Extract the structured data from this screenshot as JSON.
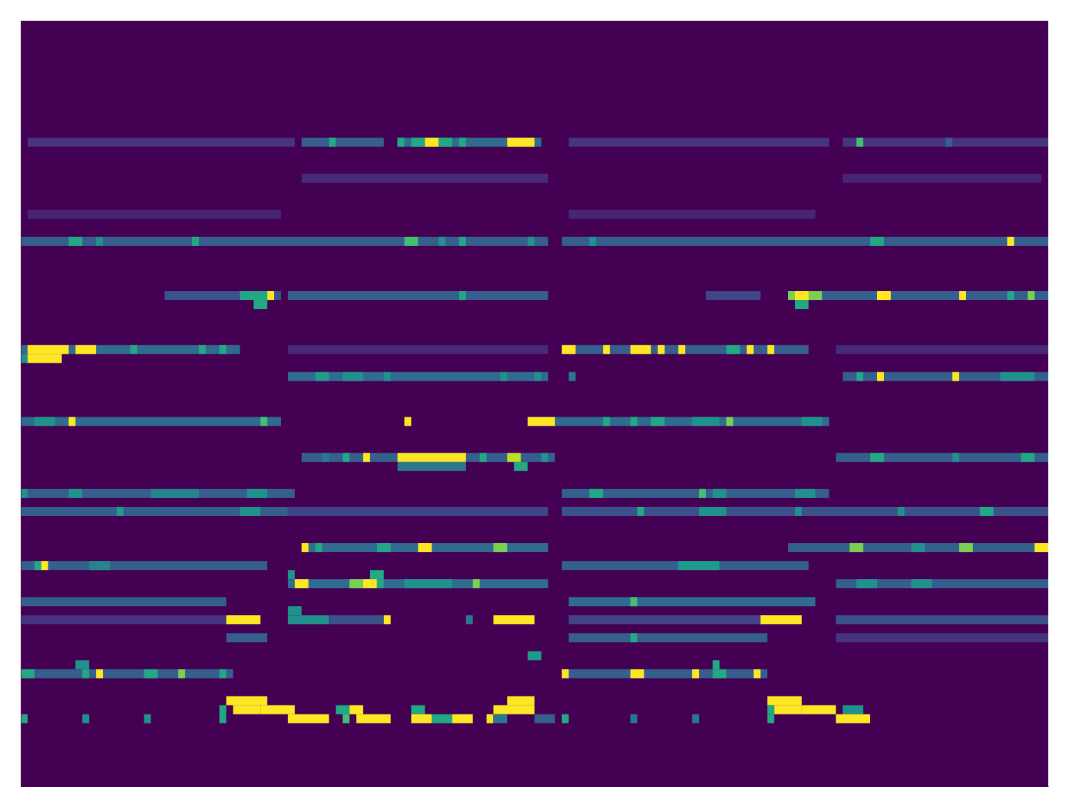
{
  "chart_data": {
    "type": "heatmap",
    "xlim": [
      0,
      150
    ],
    "ylim": [
      0,
      85
    ],
    "tick_labels": false,
    "color_range": [
      0,
      1
    ],
    "cells": [
      [
        1,
        39,
        13,
        0.15
      ],
      [
        41,
        52,
        13,
        0.3
      ],
      [
        45,
        45,
        13,
        0.6
      ],
      [
        55,
        75,
        13,
        0.35
      ],
      [
        55,
        55,
        13,
        0.6
      ],
      [
        57,
        58,
        13,
        0.6
      ],
      [
        59,
        60,
        13,
        1
      ],
      [
        61,
        62,
        13,
        0.6
      ],
      [
        64,
        64,
        13,
        0.6
      ],
      [
        71,
        74,
        13,
        1
      ],
      [
        80,
        117,
        13,
        0.15
      ],
      [
        120,
        149,
        13,
        0.15
      ],
      [
        122,
        122,
        13,
        0.7
      ],
      [
        135,
        135,
        13,
        0.3
      ],
      [
        41,
        76,
        17,
        0.12
      ],
      [
        120,
        148,
        17,
        0.1
      ],
      [
        1,
        37,
        21,
        0.1
      ],
      [
        80,
        115,
        21,
        0.1
      ],
      [
        0,
        76,
        24,
        0.3
      ],
      [
        7,
        8,
        24,
        0.6
      ],
      [
        11,
        11,
        24,
        0.5
      ],
      [
        25,
        25,
        24,
        0.6
      ],
      [
        56,
        57,
        24,
        0.7
      ],
      [
        61,
        61,
        24,
        0.5
      ],
      [
        64,
        64,
        24,
        0.6
      ],
      [
        74,
        74,
        24,
        0.5
      ],
      [
        79,
        149,
        24,
        0.3
      ],
      [
        83,
        83,
        24,
        0.5
      ],
      [
        124,
        125,
        24,
        0.6
      ],
      [
        144,
        144,
        24,
        1
      ],
      [
        21,
        37,
        30,
        0.25
      ],
      [
        32,
        35,
        30,
        0.6
      ],
      [
        36,
        36,
        30,
        1
      ],
      [
        39,
        76,
        30,
        0.3
      ],
      [
        64,
        64,
        30,
        0.6
      ],
      [
        100,
        107,
        30,
        0.2
      ],
      [
        112,
        116,
        30,
        0.8
      ],
      [
        113,
        114,
        30,
        1
      ],
      [
        117,
        149,
        30,
        0.3
      ],
      [
        125,
        126,
        30,
        1
      ],
      [
        137,
        137,
        30,
        1
      ],
      [
        144,
        144,
        30,
        0.6
      ],
      [
        147,
        147,
        30,
        0.8
      ],
      [
        34,
        35,
        31,
        0.6
      ],
      [
        113,
        114,
        31,
        0.6
      ],
      [
        0,
        31,
        36,
        0.35
      ],
      [
        1,
        6,
        36,
        1
      ],
      [
        8,
        10,
        36,
        1
      ],
      [
        16,
        16,
        36,
        0.6
      ],
      [
        26,
        26,
        36,
        0.6
      ],
      [
        29,
        29,
        36,
        0.6
      ],
      [
        39,
        76,
        36,
        0.12
      ],
      [
        79,
        114,
        36,
        0.3
      ],
      [
        79,
        80,
        36,
        1
      ],
      [
        85,
        85,
        36,
        1
      ],
      [
        89,
        91,
        36,
        1
      ],
      [
        93,
        93,
        36,
        1
      ],
      [
        96,
        96,
        36,
        1
      ],
      [
        103,
        104,
        36,
        0.6
      ],
      [
        106,
        106,
        36,
        1
      ],
      [
        109,
        109,
        36,
        1
      ],
      [
        119,
        149,
        36,
        0.12
      ],
      [
        1,
        5,
        37,
        1
      ],
      [
        0,
        0,
        37,
        0.5
      ],
      [
        39,
        76,
        39,
        0.35
      ],
      [
        43,
        44,
        39,
        0.55
      ],
      [
        47,
        49,
        39,
        0.5
      ],
      [
        53,
        53,
        39,
        0.5
      ],
      [
        70,
        70,
        39,
        0.5
      ],
      [
        75,
        75,
        39,
        0.5
      ],
      [
        80,
        80,
        39,
        0.4
      ],
      [
        120,
        149,
        39,
        0.3
      ],
      [
        122,
        122,
        39,
        0.6
      ],
      [
        125,
        125,
        39,
        1
      ],
      [
        136,
        136,
        39,
        1
      ],
      [
        143,
        147,
        39,
        0.5
      ],
      [
        0,
        37,
        44,
        0.35
      ],
      [
        2,
        4,
        44,
        0.5
      ],
      [
        7,
        7,
        44,
        1
      ],
      [
        35,
        35,
        44,
        0.7
      ],
      [
        56,
        56,
        44,
        1
      ],
      [
        74,
        117,
        44,
        0.35
      ],
      [
        74,
        77,
        44,
        1
      ],
      [
        85,
        85,
        44,
        0.6
      ],
      [
        89,
        89,
        44,
        0.6
      ],
      [
        92,
        93,
        44,
        0.6
      ],
      [
        98,
        101,
        44,
        0.5
      ],
      [
        103,
        103,
        44,
        0.8
      ],
      [
        114,
        116,
        44,
        0.5
      ],
      [
        41,
        77,
        48,
        0.3
      ],
      [
        44,
        44,
        48,
        0.4
      ],
      [
        47,
        47,
        48,
        0.6
      ],
      [
        50,
        50,
        48,
        1
      ],
      [
        55,
        64,
        48,
        1
      ],
      [
        67,
        67,
        48,
        0.6
      ],
      [
        71,
        72,
        48,
        0.9
      ],
      [
        76,
        76,
        48,
        0.5
      ],
      [
        119,
        149,
        48,
        0.3
      ],
      [
        124,
        125,
        48,
        0.6
      ],
      [
        136,
        136,
        48,
        0.5
      ],
      [
        146,
        147,
        48,
        0.6
      ],
      [
        55,
        64,
        49,
        0.4
      ],
      [
        72,
        73,
        49,
        0.6
      ],
      [
        0,
        39,
        52,
        0.3
      ],
      [
        0,
        0,
        52,
        0.5
      ],
      [
        7,
        8,
        52,
        0.5
      ],
      [
        19,
        25,
        52,
        0.45
      ],
      [
        33,
        35,
        52,
        0.5
      ],
      [
        79,
        117,
        52,
        0.3
      ],
      [
        83,
        84,
        52,
        0.6
      ],
      [
        99,
        99,
        52,
        0.7
      ],
      [
        101,
        102,
        52,
        0.5
      ],
      [
        113,
        115,
        52,
        0.5
      ],
      [
        0,
        38,
        54,
        0.3
      ],
      [
        14,
        14,
        54,
        0.55
      ],
      [
        32,
        34,
        54,
        0.5
      ],
      [
        39,
        76,
        54,
        0.2
      ],
      [
        79,
        149,
        54,
        0.25
      ],
      [
        90,
        90,
        54,
        0.6
      ],
      [
        99,
        102,
        54,
        0.5
      ],
      [
        113,
        113,
        54,
        0.5
      ],
      [
        128,
        128,
        54,
        0.5
      ],
      [
        140,
        141,
        54,
        0.6
      ],
      [
        41,
        76,
        58,
        0.35
      ],
      [
        41,
        41,
        58,
        1
      ],
      [
        43,
        43,
        58,
        0.6
      ],
      [
        52,
        53,
        58,
        0.6
      ],
      [
        58,
        59,
        58,
        1
      ],
      [
        69,
        70,
        58,
        0.8
      ],
      [
        112,
        149,
        58,
        0.3
      ],
      [
        121,
        122,
        58,
        0.8
      ],
      [
        130,
        131,
        58,
        0.5
      ],
      [
        137,
        138,
        58,
        0.8
      ],
      [
        148,
        149,
        58,
        1
      ],
      [
        0,
        35,
        60,
        0.3
      ],
      [
        2,
        2,
        60,
        0.6
      ],
      [
        3,
        3,
        60,
        1
      ],
      [
        10,
        12,
        60,
        0.45
      ],
      [
        79,
        114,
        60,
        0.3
      ],
      [
        96,
        101,
        60,
        0.55
      ],
      [
        39,
        39,
        61,
        0.5
      ],
      [
        51,
        52,
        61,
        0.6
      ],
      [
        39,
        76,
        62,
        0.35
      ],
      [
        40,
        41,
        62,
        1
      ],
      [
        48,
        49,
        62,
        0.8
      ],
      [
        50,
        51,
        62,
        1
      ],
      [
        52,
        52,
        62,
        0.6
      ],
      [
        56,
        62,
        62,
        0.5
      ],
      [
        66,
        66,
        62,
        0.8
      ],
      [
        119,
        149,
        62,
        0.3
      ],
      [
        122,
        124,
        62,
        0.5
      ],
      [
        130,
        132,
        62,
        0.5
      ],
      [
        0,
        29,
        64,
        0.3
      ],
      [
        80,
        115,
        64,
        0.35
      ],
      [
        89,
        89,
        64,
        0.7
      ],
      [
        39,
        40,
        65,
        0.5
      ],
      [
        0,
        29,
        66,
        0.15
      ],
      [
        30,
        34,
        66,
        1
      ],
      [
        39,
        44,
        66,
        0.5
      ],
      [
        45,
        52,
        66,
        0.25
      ],
      [
        53,
        53,
        66,
        1
      ],
      [
        65,
        65,
        66,
        0.4
      ],
      [
        69,
        74,
        66,
        1
      ],
      [
        80,
        108,
        66,
        0.2
      ],
      [
        108,
        113,
        66,
        1
      ],
      [
        119,
        149,
        66,
        0.25
      ],
      [
        30,
        35,
        68,
        0.3
      ],
      [
        80,
        108,
        68,
        0.3
      ],
      [
        89,
        89,
        68,
        0.6
      ],
      [
        119,
        149,
        68,
        0.15
      ],
      [
        74,
        75,
        70,
        0.55
      ],
      [
        8,
        9,
        71,
        0.5
      ],
      [
        101,
        101,
        71,
        0.6
      ],
      [
        0,
        30,
        72,
        0.3
      ],
      [
        0,
        1,
        72,
        0.6
      ],
      [
        9,
        9,
        72,
        0.6
      ],
      [
        11,
        11,
        72,
        1
      ],
      [
        18,
        19,
        72,
        0.6
      ],
      [
        23,
        23,
        72,
        0.8
      ],
      [
        29,
        29,
        72,
        0.6
      ],
      [
        79,
        108,
        72,
        0.3
      ],
      [
        79,
        79,
        72,
        1
      ],
      [
        89,
        90,
        72,
        1
      ],
      [
        98,
        98,
        72,
        1
      ],
      [
        101,
        102,
        72,
        0.6
      ],
      [
        107,
        107,
        72,
        1
      ],
      [
        30,
        35,
        75,
        1
      ],
      [
        71,
        74,
        75,
        1
      ],
      [
        109,
        113,
        75,
        1
      ],
      [
        29,
        29,
        76,
        0.6
      ],
      [
        31,
        34,
        76,
        1
      ],
      [
        35,
        39,
        76,
        1
      ],
      [
        46,
        47,
        76,
        0.6
      ],
      [
        48,
        49,
        76,
        1
      ],
      [
        57,
        58,
        76,
        0.6
      ],
      [
        69,
        74,
        76,
        1
      ],
      [
        109,
        109,
        76,
        0.6
      ],
      [
        110,
        113,
        76,
        1
      ],
      [
        114,
        118,
        76,
        1
      ],
      [
        120,
        122,
        76,
        0.5
      ],
      [
        0,
        0,
        77,
        0.6
      ],
      [
        9,
        9,
        77,
        0.5
      ],
      [
        18,
        18,
        77,
        0.5
      ],
      [
        29,
        29,
        77,
        0.6
      ],
      [
        39,
        44,
        77,
        1
      ],
      [
        47,
        47,
        77,
        0.7
      ],
      [
        49,
        53,
        77,
        1
      ],
      [
        57,
        59,
        77,
        1
      ],
      [
        60,
        62,
        77,
        0.6
      ],
      [
        63,
        65,
        77,
        1
      ],
      [
        68,
        68,
        77,
        1
      ],
      [
        69,
        70,
        77,
        0.4
      ],
      [
        75,
        77,
        77,
        0.3
      ],
      [
        79,
        79,
        77,
        0.6
      ],
      [
        89,
        89,
        77,
        0.4
      ],
      [
        98,
        98,
        77,
        0.4
      ],
      [
        109,
        109,
        77,
        0.6
      ],
      [
        119,
        123,
        77,
        1
      ]
    ]
  }
}
